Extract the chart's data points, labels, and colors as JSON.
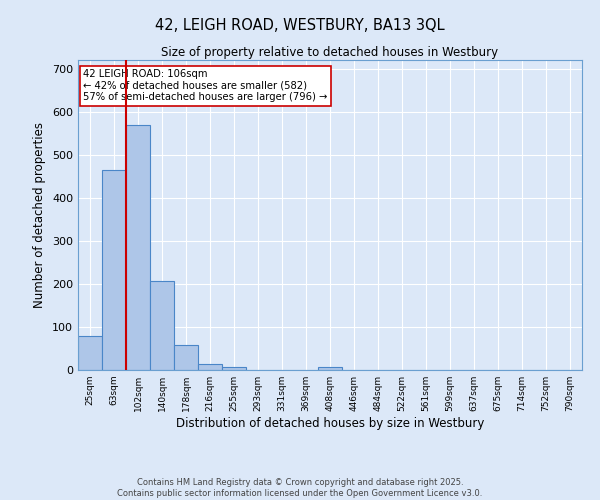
{
  "title": "42, LEIGH ROAD, WESTBURY, BA13 3QL",
  "subtitle": "Size of property relative to detached houses in Westbury",
  "xlabel": "Distribution of detached houses by size in Westbury",
  "ylabel": "Number of detached properties",
  "categories": [
    "25sqm",
    "63sqm",
    "102sqm",
    "140sqm",
    "178sqm",
    "216sqm",
    "255sqm",
    "293sqm",
    "331sqm",
    "369sqm",
    "408sqm",
    "446sqm",
    "484sqm",
    "522sqm",
    "561sqm",
    "599sqm",
    "637sqm",
    "675sqm",
    "714sqm",
    "752sqm",
    "790sqm"
  ],
  "values": [
    80,
    465,
    570,
    207,
    57,
    15,
    8,
    0,
    0,
    0,
    6,
    0,
    0,
    0,
    0,
    0,
    0,
    0,
    0,
    0,
    0
  ],
  "bar_color": "#aec6e8",
  "bar_edge_color": "#4a86c8",
  "background_color": "#dce8f8",
  "grid_color": "#ffffff",
  "vline_color": "#cc0000",
  "annotation_text": "42 LEIGH ROAD: 106sqm\n← 42% of detached houses are smaller (582)\n57% of semi-detached houses are larger (796) →",
  "annotation_box_color": "#ffffff",
  "annotation_box_edge": "#cc0000",
  "footer_text": "Contains HM Land Registry data © Crown copyright and database right 2025.\nContains public sector information licensed under the Open Government Licence v3.0.",
  "ylim": [
    0,
    720
  ],
  "figsize": [
    6.0,
    5.0
  ],
  "dpi": 100
}
